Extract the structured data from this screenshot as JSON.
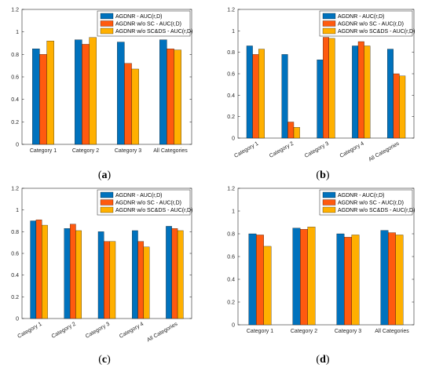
{
  "chart_data": [
    {
      "type": "bar",
      "panel_label": "(a)",
      "categories": [
        "Category 1",
        "Category 2",
        "Category 3",
        "All Categories"
      ],
      "series": [
        {
          "name": "AGDNR - AUC(r,D)",
          "values": [
            0.85,
            0.93,
            0.91,
            0.93
          ]
        },
        {
          "name": "AGDNR w/o SC - AUC(r,D)",
          "values": [
            0.8,
            0.89,
            0.72,
            0.85
          ]
        },
        {
          "name": "AGDNR w/o SC&DS - AUC(r,D)",
          "values": [
            0.92,
            0.95,
            0.67,
            0.84
          ]
        }
      ],
      "ylim": [
        0,
        1.2
      ],
      "yticks": [
        "0",
        "0.2",
        "0.4",
        "0.6",
        "0.8",
        "1",
        "1.2"
      ],
      "ytick_values": [
        0,
        0.2,
        0.4,
        0.6,
        0.8,
        1.0,
        1.2
      ],
      "rotated_labels": false,
      "legend_position": "top-right",
      "grid": false
    },
    {
      "type": "bar",
      "panel_label": "(b)",
      "categories": [
        "Category 1",
        "Category 2",
        "Category 3",
        "Category 4",
        "All Categories"
      ],
      "series": [
        {
          "name": "AGDNR - AUC(r,D)",
          "values": [
            0.86,
            0.78,
            0.73,
            0.86,
            0.83
          ]
        },
        {
          "name": "AGDNR w/o SC - AUC(r,D)",
          "values": [
            0.78,
            0.15,
            0.94,
            0.9,
            0.6
          ]
        },
        {
          "name": "AGDNR w/o SC&DS - AUC(r,D)",
          "values": [
            0.83,
            0.1,
            0.93,
            0.86,
            0.58
          ]
        }
      ],
      "ylim": [
        0,
        1.2
      ],
      "yticks": [
        "0",
        "0.2",
        "0.4",
        "0.6",
        "0.8",
        "1",
        "1.2"
      ],
      "ytick_values": [
        0,
        0.2,
        0.4,
        0.6,
        0.8,
        1.0,
        1.2
      ],
      "rotated_labels": true,
      "legend_position": "top-right",
      "grid": false
    },
    {
      "type": "bar",
      "panel_label": "(c)",
      "categories": [
        "Category 1",
        "Category 2",
        "Category 3",
        "Category 4",
        "All Categories"
      ],
      "series": [
        {
          "name": "AGDNR - AUC(r,D)",
          "values": [
            0.9,
            0.83,
            0.8,
            0.81,
            0.85
          ]
        },
        {
          "name": "AGDNR w/o SC - AUC(r,D)",
          "values": [
            0.91,
            0.87,
            0.71,
            0.71,
            0.83
          ]
        },
        {
          "name": "AGDNR w/o SC&DS - AUC(r,D)",
          "values": [
            0.86,
            0.81,
            0.71,
            0.66,
            0.81
          ]
        }
      ],
      "ylim": [
        0,
        1.2
      ],
      "yticks": [
        "0",
        "0.2",
        "0.4",
        "0.6",
        "0.8",
        "1",
        "1.2"
      ],
      "ytick_values": [
        0,
        0.2,
        0.4,
        0.6,
        0.8,
        1.0,
        1.2
      ],
      "rotated_labels": true,
      "legend_position": "top-right",
      "grid": false
    },
    {
      "type": "bar",
      "panel_label": "(d)",
      "categories": [
        "Category 1",
        "Category 2",
        "Category 3",
        "All Categories"
      ],
      "series": [
        {
          "name": "AGDNR - AUC(r,D)",
          "values": [
            0.8,
            0.85,
            0.8,
            0.83
          ]
        },
        {
          "name": "AGDNR w/o SC - AUC(r,D)",
          "values": [
            0.79,
            0.84,
            0.77,
            0.81
          ]
        },
        {
          "name": "AGDNR w/o SC&DS - AUC(r,D)",
          "values": [
            0.69,
            0.86,
            0.79,
            0.79
          ]
        }
      ],
      "ylim": [
        0,
        1.2
      ],
      "yticks": [
        "0",
        "0.2",
        "0.4",
        "0.6",
        "0.8",
        "1",
        "1.2"
      ],
      "ytick_values": [
        0,
        0.2,
        0.4,
        0.6,
        0.8,
        1.0,
        1.2
      ],
      "rotated_labels": false,
      "legend_position": "top-right",
      "grid": false
    }
  ],
  "colors": {
    "series": [
      "#0072BD",
      "#FF5A0F",
      "#FFB000"
    ],
    "axis": "#262626",
    "background": "#ffffff"
  }
}
